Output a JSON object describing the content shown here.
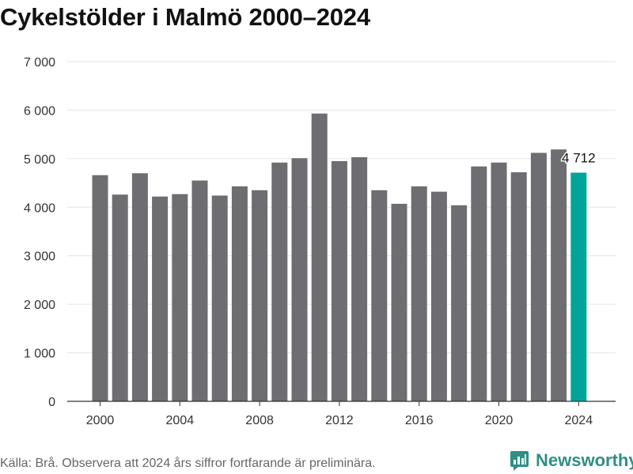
{
  "title": "Cykelstölder i Malmö 2000–2024",
  "footer": {
    "source": "Källa: Brå. Observera att 2024 års siffror fortfarande är preliminära."
  },
  "brand": {
    "name": "Newsworthy",
    "icon": "newsworthy-logo-icon"
  },
  "colors": {
    "bar": "#6d6d72",
    "highlight": "#00a49b",
    "grid": "#e6e6e6",
    "axis": "#333333"
  },
  "chart_data": {
    "type": "bar",
    "x": [
      2000,
      2001,
      2002,
      2003,
      2004,
      2005,
      2006,
      2007,
      2008,
      2009,
      2010,
      2011,
      2012,
      2013,
      2014,
      2015,
      2016,
      2017,
      2018,
      2019,
      2020,
      2021,
      2022,
      2023,
      2024
    ],
    "values": [
      4660,
      4260,
      4700,
      4220,
      4270,
      4550,
      4240,
      4430,
      4350,
      4920,
      5010,
      5930,
      4950,
      5030,
      4350,
      4070,
      4430,
      4320,
      4040,
      4840,
      4920,
      4720,
      5120,
      5190,
      4712
    ],
    "highlight_index": 24,
    "value_label": "4 712",
    "ylim": [
      0,
      7000
    ],
    "yticks": [
      0,
      1000,
      2000,
      3000,
      4000,
      5000,
      6000,
      7000
    ],
    "ytick_labels": [
      "0",
      "1 000",
      "2 000",
      "3 000",
      "4 000",
      "5 000",
      "6 000",
      "7 000"
    ],
    "xticks": [
      2000,
      2004,
      2008,
      2012,
      2016,
      2020,
      2024
    ],
    "xtick_labels": [
      "2000",
      "2004",
      "2008",
      "2012",
      "2016",
      "2020",
      "2024"
    ],
    "grid": true,
    "xlabel": "",
    "ylabel": ""
  }
}
